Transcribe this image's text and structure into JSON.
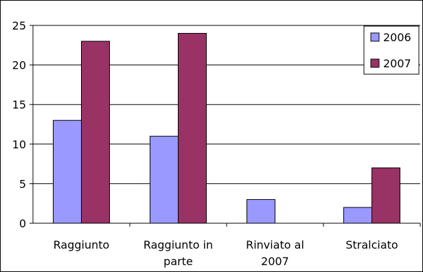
{
  "chart_data": {
    "type": "bar",
    "title": "",
    "xlabel": "",
    "ylabel": "",
    "ylim": [
      0,
      25
    ],
    "yticks": [
      0,
      5,
      10,
      15,
      20,
      25
    ],
    "grid": true,
    "legend": "top-right",
    "categories": [
      [
        "Raggiunto"
      ],
      [
        "Raggiunto in",
        "parte"
      ],
      [
        "Rinviato al",
        "2007"
      ],
      [
        "Stralciato"
      ]
    ],
    "series": [
      {
        "name": "2006",
        "color": "#9999ff",
        "values": [
          13,
          11,
          3,
          2
        ]
      },
      {
        "name": "2007",
        "color": "#993366",
        "values": [
          23,
          24,
          0,
          7
        ]
      }
    ]
  }
}
